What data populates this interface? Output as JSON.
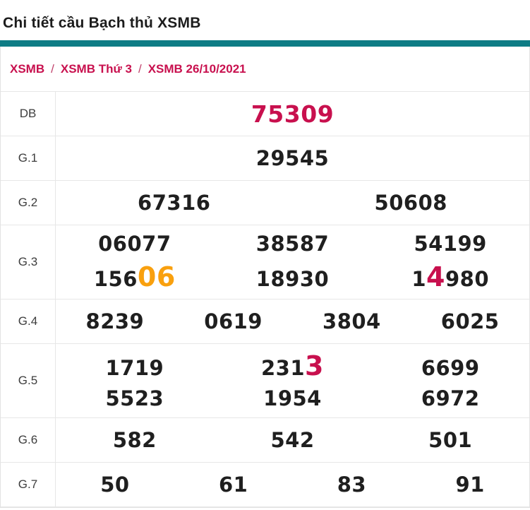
{
  "page": {
    "title": "Chi tiết cầu Bạch thủ XSMB"
  },
  "breadcrumb": {
    "separator": "/",
    "items": [
      {
        "label": "XSMB"
      },
      {
        "label": "XSMB Thứ 3"
      },
      {
        "label": "XSMB 26/10/2021"
      }
    ]
  },
  "colors": {
    "accent_teal": "#0e7c85",
    "crimson": "#c8104e",
    "orange": "#f9a00e",
    "number_text": "#1f1f1f",
    "border": "#e7e7e7"
  },
  "results_table": {
    "rows": [
      {
        "label": "DB",
        "lines": [
          [
            [
              {
                "t": "75309",
                "hl": "db"
              }
            ]
          ]
        ]
      },
      {
        "label": "G.1",
        "lines": [
          [
            [
              {
                "t": "29545"
              }
            ]
          ]
        ]
      },
      {
        "label": "G.2",
        "lines": [
          [
            [
              {
                "t": "67316"
              }
            ],
            [
              {
                "t": "50608"
              }
            ]
          ]
        ]
      },
      {
        "label": "G.3",
        "lines": [
          [
            [
              {
                "t": "06077"
              }
            ],
            [
              {
                "t": "38587"
              }
            ],
            [
              {
                "t": "54199"
              }
            ]
          ],
          [
            [
              {
                "t": "156"
              },
              {
                "t": "06",
                "hl": "orange"
              }
            ],
            [
              {
                "t": "18930"
              }
            ],
            [
              {
                "t": "1"
              },
              {
                "t": "4",
                "hl": "red"
              },
              {
                "t": "980"
              }
            ]
          ]
        ]
      },
      {
        "label": "G.4",
        "lines": [
          [
            [
              {
                "t": "8239"
              }
            ],
            [
              {
                "t": "0619"
              }
            ],
            [
              {
                "t": "3804"
              }
            ],
            [
              {
                "t": "6025"
              }
            ]
          ]
        ]
      },
      {
        "label": "G.5",
        "lines": [
          [
            [
              {
                "t": "1719"
              }
            ],
            [
              {
                "t": "231"
              },
              {
                "t": "3",
                "hl": "red"
              }
            ],
            [
              {
                "t": "6699"
              }
            ]
          ],
          [
            [
              {
                "t": "5523"
              }
            ],
            [
              {
                "t": "1954"
              }
            ],
            [
              {
                "t": "6972"
              }
            ]
          ]
        ]
      },
      {
        "label": "G.6",
        "lines": [
          [
            [
              {
                "t": "582"
              }
            ],
            [
              {
                "t": "542"
              }
            ],
            [
              {
                "t": "501"
              }
            ]
          ]
        ]
      },
      {
        "label": "G.7",
        "lines": [
          [
            [
              {
                "t": "50"
              }
            ],
            [
              {
                "t": "61"
              }
            ],
            [
              {
                "t": "83"
              }
            ],
            [
              {
                "t": "91"
              }
            ]
          ]
        ]
      }
    ]
  }
}
